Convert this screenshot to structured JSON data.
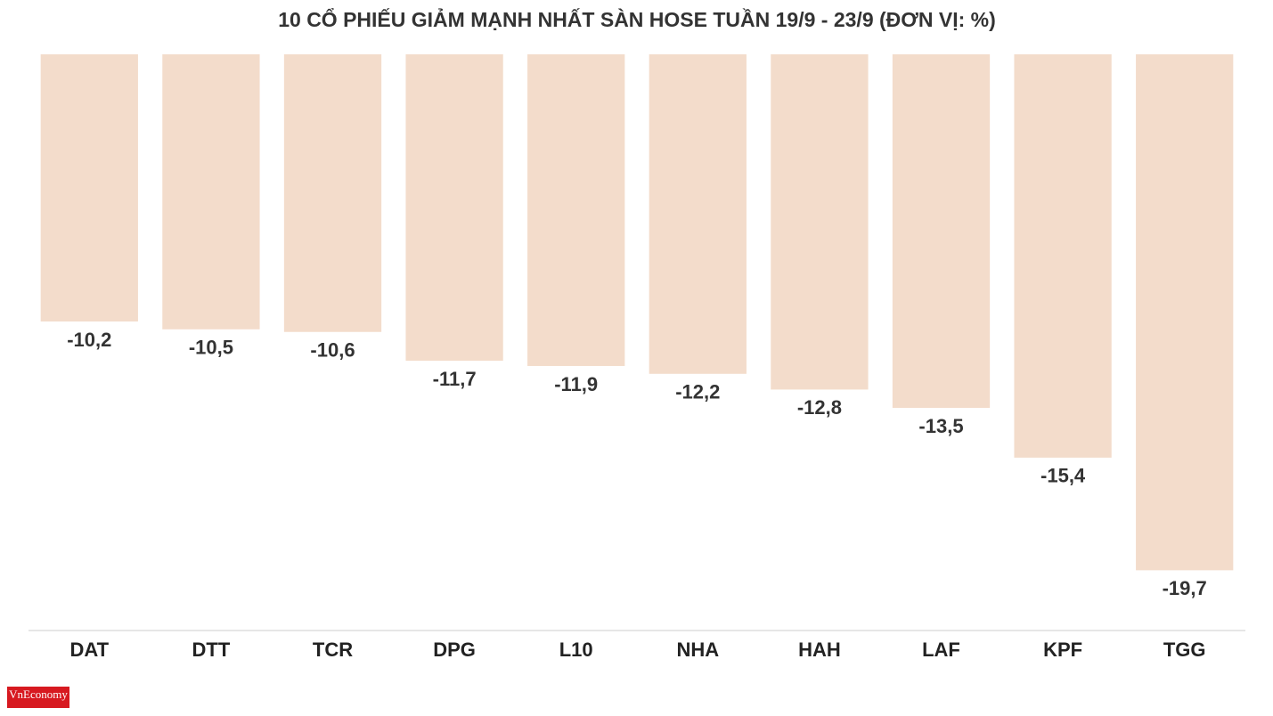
{
  "chart_data": {
    "type": "bar",
    "title": "10 CỔ PHIẾU GIẢM MẠNH NHẤT SÀN HOSE TUẦN 19/9 - 23/9 (ĐƠN VỊ: %)",
    "categories": [
      "DAT",
      "DTT",
      "TCR",
      "DPG",
      "L10",
      "NHA",
      "HAH",
      "LAF",
      "KPF",
      "TGG"
    ],
    "values": [
      -10.2,
      -10.5,
      -10.6,
      -11.7,
      -11.9,
      -12.2,
      -12.8,
      -13.5,
      -15.4,
      -19.7
    ],
    "value_labels": [
      "-10,2",
      "-10,5",
      "-10,6",
      "-11,7",
      "-11,9",
      "-12,2",
      "-12,8",
      "-13,5",
      "-15,4",
      "-19,7"
    ],
    "color": "#f3dccb",
    "ylim": [
      0,
      -22
    ],
    "grid": false,
    "source": "VnEconomy"
  }
}
